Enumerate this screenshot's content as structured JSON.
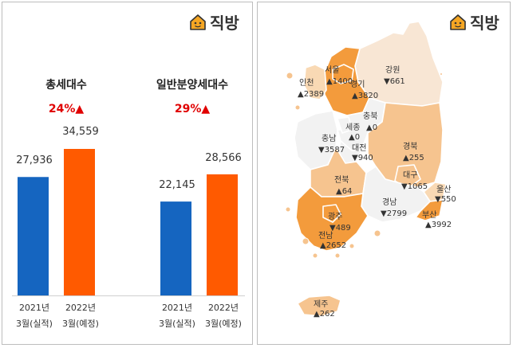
{
  "brand": {
    "logo_text": "직방",
    "logo_icon": "house-face-icon"
  },
  "chart_data": [
    {
      "type": "bar",
      "title": "총세대수",
      "change": "24%▲",
      "categories": [
        [
          "2021년",
          "3월(실적)"
        ],
        [
          "2022년",
          "3월(예정)"
        ]
      ],
      "values": [
        27936,
        34559
      ],
      "value_labels": [
        "27,936",
        "34,559"
      ],
      "colors": [
        "#1565c0",
        "#ff5a00"
      ]
    },
    {
      "type": "bar",
      "title": "일반분양세대수",
      "change": "29%▲",
      "categories": [
        [
          "2021년",
          "3월(실적)"
        ],
        [
          "2022년",
          "3월(예정)"
        ]
      ],
      "values": [
        22145,
        28566
      ],
      "value_labels": [
        "22,145",
        "28,566"
      ],
      "colors": [
        "#1565c0",
        "#ff5a00"
      ]
    }
  ],
  "map": {
    "regions": [
      {
        "name": "서울",
        "value": "▲1400",
        "trend": "up",
        "level": "high"
      },
      {
        "name": "경기",
        "value": "▲3820",
        "trend": "up",
        "level": "high"
      },
      {
        "name": "인천",
        "value": "▲2389",
        "trend": "up",
        "level": "low"
      },
      {
        "name": "강원",
        "value": "▼661",
        "trend": "down",
        "level": "pale"
      },
      {
        "name": "충북",
        "value": "▲0",
        "trend": "up",
        "level": "none"
      },
      {
        "name": "세종",
        "value": "▲0",
        "trend": "up",
        "level": "none"
      },
      {
        "name": "충남",
        "value": "▼3587",
        "trend": "down",
        "level": "none"
      },
      {
        "name": "대전",
        "value": "▼940",
        "trend": "down",
        "level": "none"
      },
      {
        "name": "경북",
        "value": "▲255",
        "trend": "up",
        "level": "mid"
      },
      {
        "name": "대구",
        "value": "▼1065",
        "trend": "down",
        "level": "mid"
      },
      {
        "name": "울산",
        "value": "▼550",
        "trend": "down",
        "level": "low"
      },
      {
        "name": "전북",
        "value": "▲64",
        "trend": "up",
        "level": "mid"
      },
      {
        "name": "경남",
        "value": "▼2799",
        "trend": "down",
        "level": "none"
      },
      {
        "name": "부산",
        "value": "▲3992",
        "trend": "up",
        "level": "high"
      },
      {
        "name": "광주",
        "value": "▼489",
        "trend": "down",
        "level": "high"
      },
      {
        "name": "전남",
        "value": "▲2652",
        "trend": "up",
        "level": "high"
      },
      {
        "name": "제주",
        "value": "▲262",
        "trend": "up",
        "level": "mid"
      }
    ],
    "colors": {
      "high": "#f39b3c",
      "mid": "#f6c48f",
      "low": "#f9d9b4",
      "pale": "#f8e6d4",
      "none": "#f2f2f2",
      "border": "#ffffff"
    }
  }
}
